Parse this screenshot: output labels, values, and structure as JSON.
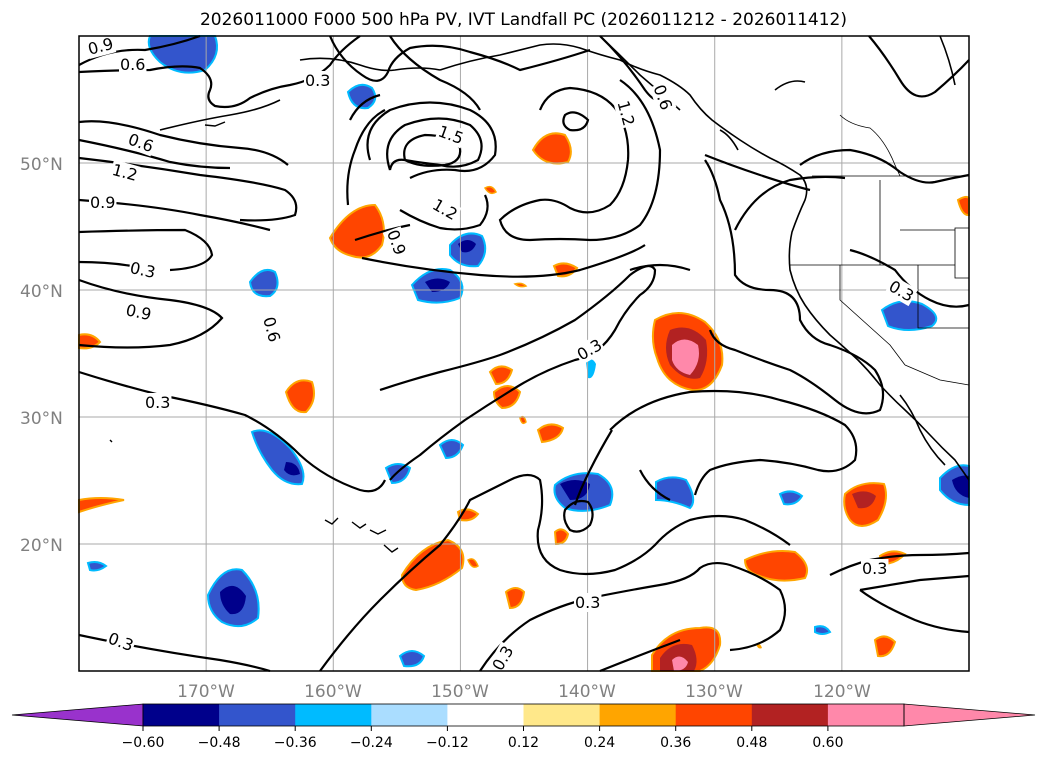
{
  "title": "2026011000 F000 500 hPa PV, IVT Landfall PC (2026011212 - 2026011412)",
  "map": {
    "lon_range": [
      -180,
      -110
    ],
    "lat_range": [
      10,
      60
    ],
    "lat_labels": [
      "20°N",
      "30°N",
      "40°N",
      "50°N"
    ],
    "lon_labels": [
      "170°W",
      "160°W",
      "150°W",
      "140°W",
      "130°W",
      "120°W"
    ],
    "gridlines": true
  },
  "contour_labels": [
    "0.9",
    "0.6",
    "0.3",
    "1.5",
    "1.2",
    "0.6",
    "0.6",
    "1.2",
    "0.9",
    "1.2",
    "0.9",
    "0.3",
    "0.9",
    "0.6",
    "0.3",
    "0.3",
    "0.3",
    "0.3",
    "0.3",
    "0.3",
    "0.3"
  ],
  "colorbar": {
    "ticks": [
      "−0.60",
      "−0.48",
      "−0.36",
      "−0.24",
      "−0.12",
      "0.12",
      "0.24",
      "0.36",
      "0.48",
      "0.60"
    ],
    "colors": {
      "below": "#9932cc",
      "bins": [
        "#00008b",
        "#3355cc",
        "#00bbff",
        "#aaddff",
        "#ffffff",
        "#ffe88a",
        "#ffa500",
        "#ff4500",
        "#b22222",
        "#ff88aa"
      ],
      "above": "#ff88aa"
    }
  }
}
